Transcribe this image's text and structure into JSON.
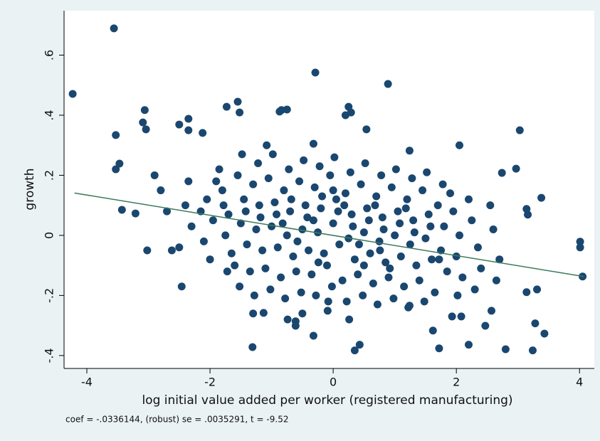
{
  "chart_data": {
    "type": "scatter",
    "xlabel": "log initial value added per worker (registered manufacturing)",
    "ylabel": "growth",
    "note": "coef = -.0336144, (robust) se = .0035291, t = -9.52",
    "xlim": [
      -4.37,
      4.24
    ],
    "ylim": [
      -0.443,
      0.748
    ],
    "xticks": [
      -4,
      -2,
      0,
      2,
      4
    ],
    "yticks": [
      {
        "value": -0.4,
        "label": "-.4"
      },
      {
        "value": -0.2,
        "label": "-.2"
      },
      0,
      {
        "value": 0.2,
        "label": ".2"
      },
      {
        "value": 0.4,
        "label": ".4"
      },
      {
        "value": 0.6,
        "label": ".6"
      }
    ],
    "grid": false,
    "series": [
      {
        "type": "scatter",
        "color": "#1a476f",
        "x": [
          -3.56,
          -4.23,
          -0.29,
          0.89,
          -3.53,
          -3.06,
          -3.04,
          -3.09,
          -1.73,
          -1.55,
          -1.52,
          -0.84,
          -0.75,
          -0.87,
          0.25,
          0.2,
          0.29,
          0.54,
          3.03,
          2.05,
          1.24,
          -0.32,
          -2.35,
          -2.35,
          -2.5,
          -2.12,
          -3.53,
          -3.47,
          -3.43,
          -3.21,
          -3.02,
          -2.62,
          -2.46,
          -1.31,
          0.35,
          0.43,
          1.72,
          2.2,
          2.8,
          3.24,
          3.43,
          3.28,
          3.31,
          3.14,
          4.01,
          4.01,
          4.05,
          3.38,
          3.16,
          3.14,
          2.47,
          2.57,
          -0.32,
          -0.61,
          -0.61,
          -1.13,
          1.24,
          1.62,
          1.93,
          2.08,
          -0.09,
          2.97,
          2.74,
          -2.05,
          -1.95,
          -2.1,
          -1.9,
          -2.0,
          -2.15,
          -1.8,
          -1.7,
          -1.75,
          -1.65,
          -1.85,
          -1.72,
          -1.78,
          -1.55,
          -1.45,
          -1.5,
          -1.4,
          -1.6,
          -1.48,
          -1.52,
          -1.42,
          -1.3,
          -1.2,
          -1.25,
          -1.15,
          -1.35,
          -1.22,
          -1.28,
          -1.18,
          -1.3,
          -1.05,
          -0.95,
          -1.0,
          -0.9,
          -1.1,
          -0.98,
          -1.02,
          -0.92,
          -1.08,
          -0.8,
          -0.7,
          -0.75,
          -0.65,
          -0.85,
          -0.72,
          -0.78,
          -0.68,
          -0.82,
          -0.74,
          -0.55,
          -0.45,
          -0.5,
          -0.4,
          -0.6,
          -0.48,
          -0.52,
          -0.42,
          -0.58,
          -0.5,
          -0.3,
          -0.2,
          -0.25,
          -0.15,
          -0.35,
          -0.22,
          -0.28,
          -0.18,
          -0.32,
          -0.24,
          -0.05,
          0.05,
          0.0,
          0.1,
          -0.1,
          0.02,
          -0.02,
          0.08,
          -0.08,
          0.0,
          0.2,
          0.3,
          0.25,
          0.35,
          0.15,
          0.28,
          0.22,
          0.32,
          0.18,
          0.26,
          0.45,
          0.55,
          0.5,
          0.6,
          0.4,
          0.52,
          0.48,
          0.58,
          0.42,
          0.5,
          0.7,
          0.8,
          0.75,
          0.85,
          0.65,
          0.78,
          0.72,
          0.82,
          0.68,
          0.76,
          0.95,
          1.05,
          1.0,
          1.1,
          0.9,
          1.02,
          0.98,
          1.08,
          0.92,
          1.2,
          1.3,
          1.25,
          1.35,
          1.15,
          1.28,
          1.22,
          1.32,
          1.18,
          1.45,
          1.55,
          1.5,
          1.6,
          1.4,
          1.52,
          1.48,
          1.58,
          1.7,
          1.8,
          1.75,
          1.85,
          1.65,
          1.78,
          1.72,
          1.95,
          2.05,
          2.0,
          2.1,
          1.9,
          2.02,
          2.25,
          2.35,
          2.4,
          2.2,
          2.3,
          2.6,
          2.7,
          2.55,
          2.65,
          -2.4,
          -2.3,
          -2.5,
          -2.35,
          -2.8,
          -2.7,
          -2.9
        ],
        "values": [
          0.689,
          0.471,
          0.542,
          0.504,
          0.334,
          0.417,
          0.353,
          0.376,
          0.428,
          0.445,
          0.409,
          0.417,
          0.419,
          0.412,
          0.428,
          0.4,
          0.409,
          0.353,
          0.35,
          0.3,
          0.282,
          0.305,
          0.388,
          0.35,
          0.369,
          0.341,
          0.22,
          0.239,
          0.085,
          0.073,
          -0.05,
          -0.05,
          -0.17,
          -0.372,
          -0.383,
          -0.364,
          -0.376,
          -0.364,
          -0.379,
          -0.383,
          -0.327,
          -0.293,
          -0.18,
          -0.189,
          -0.021,
          -0.04,
          -0.137,
          0.125,
          0.069,
          0.088,
          -0.301,
          -0.251,
          -0.334,
          -0.301,
          -0.286,
          -0.258,
          -0.234,
          -0.317,
          -0.27,
          -0.27,
          -0.251,
          0.222,
          0.208,
          0.12,
          0.05,
          -0.02,
          0.18,
          -0.08,
          0.08,
          0.15,
          0.07,
          0.0,
          -0.06,
          0.22,
          -0.12,
          0.1,
          0.2,
          0.12,
          0.04,
          -0.03,
          -0.1,
          0.27,
          -0.17,
          0.08,
          0.17,
          0.1,
          0.02,
          -0.05,
          -0.12,
          0.24,
          -0.2,
          0.06,
          -0.26,
          0.19,
          0.11,
          0.03,
          -0.04,
          -0.11,
          0.27,
          -0.18,
          0.07,
          0.3,
          0.15,
          0.08,
          0.0,
          -0.07,
          -0.14,
          0.22,
          -0.21,
          0.12,
          0.04,
          -0.28,
          0.18,
          0.1,
          0.02,
          -0.05,
          -0.12,
          0.25,
          -0.19,
          0.06,
          -0.02,
          -0.26,
          0.16,
          0.09,
          0.01,
          -0.06,
          -0.13,
          0.23,
          -0.2,
          0.13,
          0.05,
          -0.09,
          0.2,
          0.12,
          0.04,
          -0.03,
          -0.1,
          0.26,
          -0.17,
          0.08,
          -0.22,
          0.15,
          0.14,
          0.07,
          -0.01,
          -0.08,
          -0.15,
          0.21,
          -0.22,
          0.03,
          0.1,
          -0.28,
          0.17,
          0.09,
          0.01,
          -0.06,
          -0.13,
          0.24,
          -0.2,
          0.05,
          -0.03,
          -0.1,
          0.13,
          0.06,
          -0.02,
          -0.09,
          -0.16,
          0.2,
          -0.23,
          0.02,
          0.1,
          -0.05,
          0.16,
          0.08,
          0.0,
          -0.07,
          -0.14,
          0.22,
          -0.21,
          0.04,
          -0.11,
          0.12,
          0.05,
          -0.03,
          -0.1,
          -0.17,
          0.19,
          -0.24,
          0.01,
          0.09,
          0.15,
          0.07,
          -0.01,
          -0.08,
          -0.15,
          0.21,
          -0.22,
          0.03,
          0.1,
          0.03,
          -0.05,
          -0.12,
          -0.19,
          0.17,
          -0.08,
          0.08,
          0.0,
          -0.07,
          -0.14,
          0.14,
          -0.2,
          0.05,
          -0.04,
          -0.11,
          0.12,
          -0.18,
          0.02,
          -0.08,
          0.1,
          -0.15,
          0.1,
          0.03,
          -0.04,
          0.18,
          0.15,
          0.08,
          0.2
        ]
      },
      {
        "type": "line",
        "color": "#3c7a5a",
        "x": [
          -4.2,
          4.07
        ],
        "values": [
          0.141,
          -0.137
        ]
      }
    ]
  }
}
